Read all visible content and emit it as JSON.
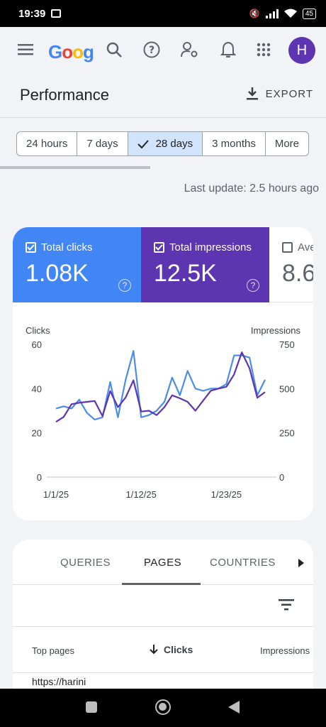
{
  "status": {
    "time": "19:39",
    "battery": "45"
  },
  "appbar": {
    "logo": [
      {
        "ch": "G",
        "color": "#4285f4"
      },
      {
        "ch": "o",
        "color": "#ea4335"
      },
      {
        "ch": "o",
        "color": "#fbbc05"
      },
      {
        "ch": "g",
        "color": "#4285f4"
      }
    ],
    "avatar_initial": "H",
    "icons": [
      "menu-icon",
      "search-icon",
      "help-icon",
      "manage-accounts-icon",
      "bell-icon",
      "apps-grid-icon"
    ]
  },
  "page": {
    "title": "Performance",
    "export_label": "EXPORT"
  },
  "date_ranges": [
    {
      "label": "24 hours",
      "selected": false
    },
    {
      "label": "7 days",
      "selected": false
    },
    {
      "label": "28 days",
      "selected": true
    },
    {
      "label": "3 months",
      "selected": false
    },
    {
      "label": "More",
      "selected": false
    }
  ],
  "last_update": "Last update: 2.5 hours ago",
  "metrics": [
    {
      "label": "Total clicks",
      "value": "1.08K",
      "checked": true,
      "color": "#4285f4"
    },
    {
      "label": "Total impressions",
      "value": "12.5K",
      "checked": true,
      "color": "#5e35b1"
    },
    {
      "label": "Ave",
      "value": "8.6",
      "checked": false
    }
  ],
  "chart_data": {
    "type": "line",
    "left_axis_label": "Clicks",
    "right_axis_label": "Impressions",
    "left_ylim": [
      0,
      60
    ],
    "right_ylim": [
      0,
      750
    ],
    "left_ticks": [
      "0",
      "20",
      "40",
      "60"
    ],
    "right_ticks": [
      "0",
      "250",
      "500",
      "750"
    ],
    "x_tick_labels": [
      {
        "label": "1/1/25",
        "index": 0
      },
      {
        "label": "1/12/25",
        "index": 11
      },
      {
        "label": "1/23/25",
        "index": 22
      }
    ],
    "series": [
      {
        "name": "Total clicks",
        "axis": "left",
        "color": "#4a8de9",
        "values": [
          31,
          32,
          31,
          35,
          29,
          26,
          27,
          43,
          27,
          44,
          57,
          27,
          28,
          30,
          34,
          45,
          37,
          48,
          40,
          39,
          40,
          40,
          42,
          55,
          55,
          54,
          37,
          44
        ]
      },
      {
        "name": "Total impressions",
        "axis": "right",
        "color": "#5e35b1",
        "values": [
          312,
          340,
          412,
          420,
          425,
          430,
          345,
          486,
          395,
          450,
          547,
          370,
          375,
          350,
          395,
          462,
          445,
          425,
          375,
          432,
          488,
          500,
          510,
          580,
          705,
          615,
          448,
          480
        ]
      }
    ],
    "grid": false
  },
  "tabs": [
    {
      "label": "QUERIES",
      "active": false
    },
    {
      "label": "PAGES",
      "active": true
    },
    {
      "label": "COUNTRIES",
      "active": false
    }
  ],
  "table": {
    "col_pages": "Top pages",
    "col_clicks": "Clicks",
    "col_impressions": "Impressions",
    "rows": [
      {
        "page": "https://harini"
      }
    ]
  }
}
